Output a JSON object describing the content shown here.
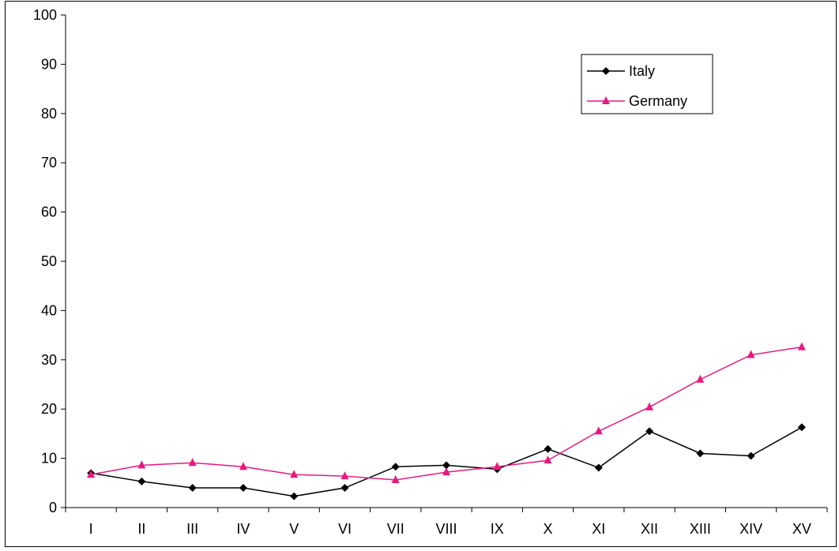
{
  "chart_data": {
    "type": "line",
    "title": "",
    "xlabel": "",
    "ylabel": "",
    "categories": [
      "I",
      "II",
      "III",
      "IV",
      "V",
      "VI",
      "VII",
      "VIII",
      "IX",
      "X",
      "XI",
      "XII",
      "XIII",
      "XIV",
      "XV"
    ],
    "ylim": [
      0,
      100
    ],
    "yticks": [
      0,
      10,
      20,
      30,
      40,
      50,
      60,
      70,
      80,
      90,
      100
    ],
    "grid": false,
    "legend_position": "top-right",
    "series": [
      {
        "name": "Italy",
        "color": "#000000",
        "marker": "diamond",
        "values": [
          7.0,
          5.3,
          4.0,
          4.0,
          2.3,
          4.0,
          8.3,
          8.6,
          7.8,
          11.9,
          8.1,
          15.5,
          11.0,
          10.5,
          16.3
        ]
      },
      {
        "name": "Germany",
        "color": "#E6197E",
        "marker": "triangle",
        "values": [
          6.7,
          8.6,
          9.1,
          8.3,
          6.7,
          6.4,
          5.6,
          7.2,
          8.3,
          9.6,
          15.5,
          20.4,
          26.0,
          31.0,
          32.6
        ]
      }
    ]
  }
}
